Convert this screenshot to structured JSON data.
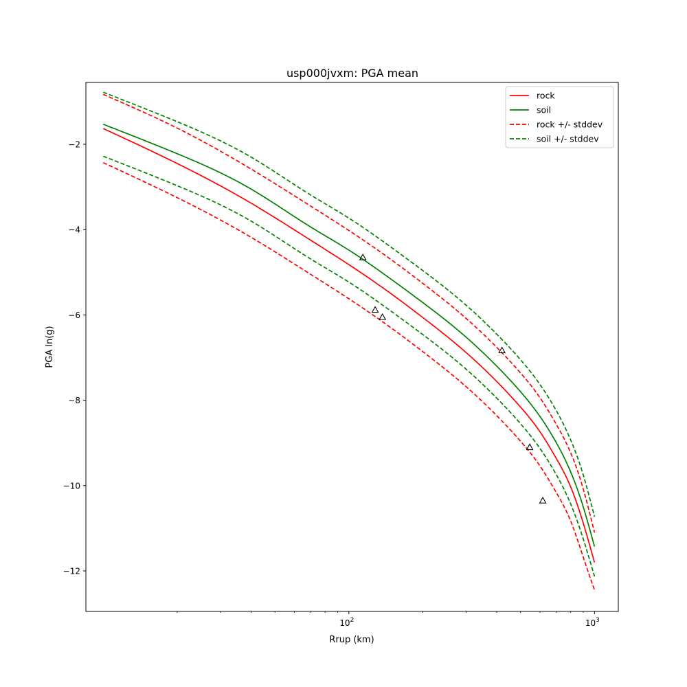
{
  "chart_data": {
    "type": "line",
    "title": "usp000jvxm: PGA mean",
    "xlabel": "Rrup (km)",
    "ylabel": "PGA ln(g)",
    "xscale": "log",
    "xlim": [
      8.5,
      1250
    ],
    "ylim": [
      -12.95,
      -0.55
    ],
    "x_ticks": [
      {
        "value": 100,
        "base": "10",
        "exp": "2"
      },
      {
        "value": 1000,
        "base": "10",
        "exp": "3"
      }
    ],
    "y_ticks": [
      {
        "value": -2,
        "label": "−2"
      },
      {
        "value": -4,
        "label": "−4"
      },
      {
        "value": -6,
        "label": "−6"
      },
      {
        "value": -8,
        "label": "−8"
      },
      {
        "value": -10,
        "label": "−10"
      },
      {
        "value": -12,
        "label": "−12"
      }
    ],
    "grid": false,
    "legend_position": "upper right",
    "x": [
      10,
      20,
      40,
      70,
      100,
      150,
      200,
      300,
      400,
      500,
      600,
      700,
      800,
      900,
      1000
    ],
    "series": [
      {
        "name": "rock",
        "color": "#ff0000",
        "style": "solid",
        "values": [
          -1.63,
          -2.45,
          -3.38,
          -4.25,
          -4.82,
          -5.52,
          -6.06,
          -6.88,
          -7.56,
          -8.16,
          -8.74,
          -9.37,
          -10.03,
          -10.88,
          -11.8
        ]
      },
      {
        "name": "soil",
        "color": "#008000",
        "style": "solid",
        "values": [
          -1.53,
          -2.22,
          -3.05,
          -3.94,
          -4.48,
          -5.18,
          -5.71,
          -6.52,
          -7.2,
          -7.8,
          -8.38,
          -9.0,
          -9.68,
          -10.5,
          -11.43
        ]
      },
      {
        "name": "rock +/- stddev",
        "color": "#ff0000",
        "style": "dashed",
        "values": [
          -0.83,
          -1.62,
          -2.58,
          -3.45,
          -4.02,
          -4.72,
          -5.26,
          -6.08,
          -6.76,
          -7.36,
          -7.94,
          -8.57,
          -9.23,
          -10.08,
          -11.1
        ]
      },
      {
        "name": "",
        "color": "#ff0000",
        "style": "dashed",
        "values": [
          -2.43,
          -3.25,
          -4.18,
          -5.05,
          -5.62,
          -6.32,
          -6.86,
          -7.68,
          -8.36,
          -8.96,
          -9.54,
          -10.17,
          -10.83,
          -11.68,
          -12.45
        ]
      },
      {
        "name": "soil +/- stddev",
        "color": "#008000",
        "style": "dashed",
        "values": [
          -0.78,
          -1.47,
          -2.3,
          -3.19,
          -3.73,
          -4.43,
          -4.96,
          -5.77,
          -6.45,
          -7.05,
          -7.63,
          -8.25,
          -8.93,
          -9.75,
          -10.73
        ]
      },
      {
        "name": "",
        "color": "#008000",
        "style": "dashed",
        "values": [
          -2.28,
          -2.97,
          -3.8,
          -4.69,
          -5.23,
          -5.93,
          -6.46,
          -7.27,
          -7.95,
          -8.55,
          -9.13,
          -9.75,
          -10.43,
          -11.25,
          -12.13
        ]
      }
    ],
    "observations": {
      "marker": "triangle",
      "points": [
        {
          "x": 114,
          "y": -4.65
        },
        {
          "x": 128,
          "y": -5.88
        },
        {
          "x": 137,
          "y": -6.05
        },
        {
          "x": 420,
          "y": -6.83
        },
        {
          "x": 545,
          "y": -9.1
        },
        {
          "x": 616,
          "y": -10.35
        }
      ]
    }
  }
}
